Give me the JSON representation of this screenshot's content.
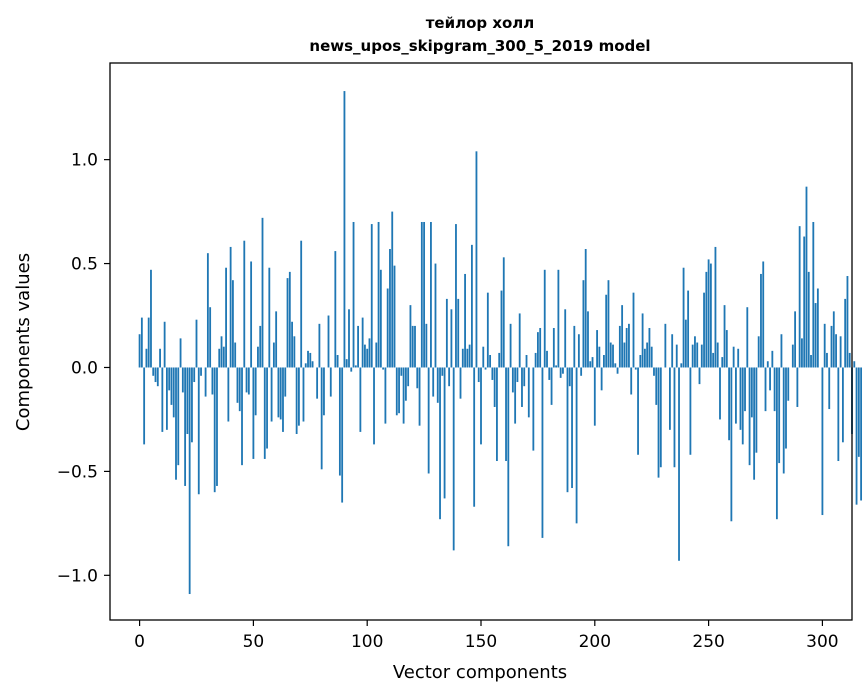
{
  "chart_data": {
    "type": "bar",
    "title": [
      "тейлор холл",
      "news_upos_skipgram_300_5_2019 model"
    ],
    "xlabel": "Vector components",
    "ylabel": "Components values",
    "xlim": [
      -13,
      313
    ],
    "ylim": [
      -1.215,
      1.465
    ],
    "xticks": [
      0,
      50,
      100,
      150,
      200,
      250,
      300
    ],
    "yticks": [
      -1.0,
      -0.5,
      0.0,
      0.5,
      1.0
    ],
    "ytick_labels": [
      "−1.0",
      "−0.5",
      "0.0",
      "0.5",
      "1.0"
    ],
    "grid": false,
    "bar_color": "#1f77b4",
    "values": [
      0.16,
      0.24,
      -0.37,
      0.09,
      0.24,
      0.47,
      -0.04,
      -0.07,
      -0.09,
      0.09,
      -0.31,
      0.22,
      -0.3,
      -0.11,
      -0.18,
      -0.24,
      -0.54,
      -0.47,
      0.14,
      -0.12,
      -0.57,
      -0.32,
      -1.09,
      -0.36,
      -0.07,
      0.23,
      -0.61,
      -0.04,
      0.0,
      -0.14,
      0.55,
      0.29,
      -0.13,
      -0.6,
      -0.57,
      0.09,
      0.15,
      0.1,
      0.48,
      -0.26,
      0.58,
      0.42,
      0.12,
      -0.17,
      -0.21,
      -0.47,
      0.61,
      -0.12,
      -0.13,
      0.51,
      -0.44,
      -0.23,
      0.1,
      0.2,
      0.72,
      -0.44,
      -0.39,
      0.48,
      -0.26,
      0.12,
      0.27,
      -0.24,
      -0.25,
      -0.31,
      -0.14,
      0.43,
      0.46,
      0.22,
      0.15,
      -0.32,
      -0.28,
      0.61,
      -0.26,
      0.02,
      0.08,
      0.07,
      0.03,
      0.0,
      -0.15,
      0.21,
      -0.49,
      -0.23,
      0.0,
      0.25,
      -0.14,
      0.0,
      0.56,
      0.06,
      -0.52,
      -0.65,
      1.33,
      0.04,
      0.28,
      -0.02,
      0.7,
      0.01,
      0.2,
      -0.31,
      0.24,
      0.11,
      0.09,
      0.14,
      0.69,
      -0.37,
      0.12,
      0.7,
      0.47,
      -0.01,
      -0.27,
      0.38,
      0.57,
      0.75,
      0.49,
      -0.23,
      -0.22,
      -0.04,
      -0.27,
      -0.16,
      -0.09,
      0.3,
      0.2,
      0.2,
      -0.1,
      -0.28,
      0.7,
      0.7,
      0.21,
      -0.51,
      0.7,
      -0.14,
      0.5,
      -0.17,
      -0.73,
      -0.04,
      -0.63,
      0.33,
      -0.09,
      0.28,
      -0.88,
      0.69,
      0.33,
      -0.15,
      0.09,
      0.45,
      0.09,
      0.11,
      0.59,
      -0.67,
      1.04,
      -0.07,
      -0.37,
      0.1,
      -0.01,
      0.36,
      0.06,
      -0.06,
      -0.19,
      -0.45,
      0.07,
      0.37,
      0.53,
      -0.45,
      -0.86,
      0.21,
      -0.12,
      -0.27,
      -0.07,
      0.26,
      -0.19,
      -0.09,
      0.06,
      -0.24,
      0.0,
      -0.4,
      0.07,
      0.17,
      0.19,
      -0.82,
      0.47,
      0.08,
      -0.06,
      -0.18,
      0.19,
      0.01,
      0.47,
      -0.05,
      -0.03,
      0.28,
      -0.6,
      -0.09,
      -0.58,
      0.2,
      -0.75,
      0.16,
      -0.04,
      0.42,
      0.57,
      0.27,
      0.03,
      0.05,
      -0.28,
      0.18,
      0.1,
      -0.11,
      0.06,
      0.35,
      0.42,
      0.12,
      0.11,
      0.02,
      -0.03,
      0.2,
      0.3,
      0.12,
      0.19,
      0.21,
      -0.13,
      0.36,
      -0.01,
      -0.42,
      0.06,
      0.26,
      0.09,
      0.12,
      0.19,
      0.1,
      -0.04,
      -0.18,
      -0.53,
      -0.48,
      0.0,
      0.21,
      0.0,
      -0.3,
      0.16,
      -0.48,
      0.11,
      -0.93,
      0.02,
      0.48,
      0.23,
      0.37,
      -0.42,
      0.11,
      0.15,
      0.12,
      -0.08,
      0.11,
      0.36,
      0.46,
      0.52,
      0.5,
      0.07,
      0.58,
      0.12,
      -0.25,
      0.05,
      0.3,
      0.18,
      -0.35,
      -0.74,
      0.1,
      -0.27,
      0.09,
      -0.3,
      -0.37,
      -0.21,
      0.29,
      -0.47,
      -0.24,
      -0.54,
      -0.41,
      0.15,
      0.45,
      0.51,
      -0.21,
      0.03,
      -0.11,
      0.08,
      -0.21,
      -0.73,
      -0.46,
      0.16,
      -0.51,
      -0.39,
      -0.16,
      0.0,
      0.11,
      0.27,
      -0.19,
      0.68,
      0.14,
      0.63,
      0.87,
      0.46,
      0.06,
      0.7,
      0.31,
      0.38,
      0.0,
      -0.71,
      0.21,
      0.07,
      -0.2,
      0.2,
      0.27,
      0.16,
      -0.45,
      0.15,
      -0.36,
      0.33,
      0.44,
      0.07,
      -0.32,
      0.03,
      -0.66,
      -0.43,
      -0.64
    ]
  }
}
